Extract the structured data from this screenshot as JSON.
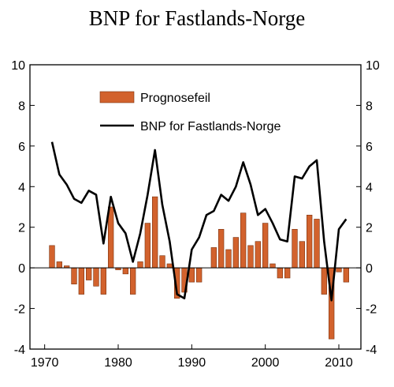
{
  "chart_data": {
    "type": "bar+line",
    "title": "BNP for Fastlands-Norge",
    "xlim": [
      1968,
      2013
    ],
    "ylim": [
      -4,
      10
    ],
    "x_ticks": [
      1970,
      1980,
      1990,
      2000,
      2010
    ],
    "y_ticks": [
      -4,
      -2,
      0,
      2,
      4,
      6,
      8,
      10
    ],
    "legend_position": "top-center",
    "grid": false,
    "series": [
      {
        "name": "Prognosefeil",
        "type": "bar",
        "color": "#d2622d",
        "x": [
          1971,
          1972,
          1973,
          1974,
          1975,
          1976,
          1977,
          1978,
          1979,
          1980,
          1981,
          1982,
          1983,
          1984,
          1985,
          1986,
          1987,
          1988,
          1989,
          1990,
          1991,
          1993,
          1994,
          1995,
          1996,
          1997,
          1998,
          1999,
          2000,
          2001,
          2002,
          2003,
          2004,
          2005,
          2006,
          2007,
          2008,
          2009,
          2010,
          2011
        ],
        "values": [
          1.1,
          0.3,
          0.1,
          -0.8,
          -1.3,
          -0.6,
          -0.9,
          -1.3,
          3.0,
          -0.1,
          -0.3,
          -1.3,
          0.3,
          2.2,
          3.5,
          0.6,
          0.2,
          -1.5,
          -1.2,
          -0.7,
          -0.7,
          1.0,
          1.9,
          0.9,
          1.5,
          2.7,
          1.1,
          1.3,
          2.2,
          0.2,
          -0.5,
          -0.5,
          1.9,
          1.3,
          2.6,
          2.4,
          -1.3,
          -3.5,
          -0.2,
          -0.7
        ]
      },
      {
        "name": "BNP for Fastlands-Norge",
        "type": "line",
        "color": "#000000",
        "x": [
          1971,
          1972,
          1973,
          1974,
          1975,
          1976,
          1977,
          1978,
          1979,
          1980,
          1981,
          1982,
          1983,
          1984,
          1985,
          1986,
          1987,
          1988,
          1989,
          1990,
          1991,
          1992,
          1993,
          1994,
          1995,
          1996,
          1997,
          1998,
          1999,
          2000,
          2001,
          2002,
          2003,
          2004,
          2005,
          2006,
          2007,
          2008,
          2009,
          2010,
          2011
        ],
        "values": [
          6.2,
          4.6,
          4.1,
          3.4,
          3.2,
          3.8,
          3.6,
          1.2,
          3.5,
          2.2,
          1.7,
          0.3,
          1.7,
          3.6,
          5.8,
          3.1,
          1.3,
          -1.3,
          -1.5,
          0.9,
          1.5,
          2.6,
          2.8,
          3.6,
          3.3,
          4.0,
          5.2,
          4.1,
          2.6,
          2.9,
          2.2,
          1.4,
          1.3,
          4.5,
          4.4,
          5.0,
          5.3,
          1.3,
          -1.6,
          1.9,
          2.4
        ]
      }
    ]
  }
}
